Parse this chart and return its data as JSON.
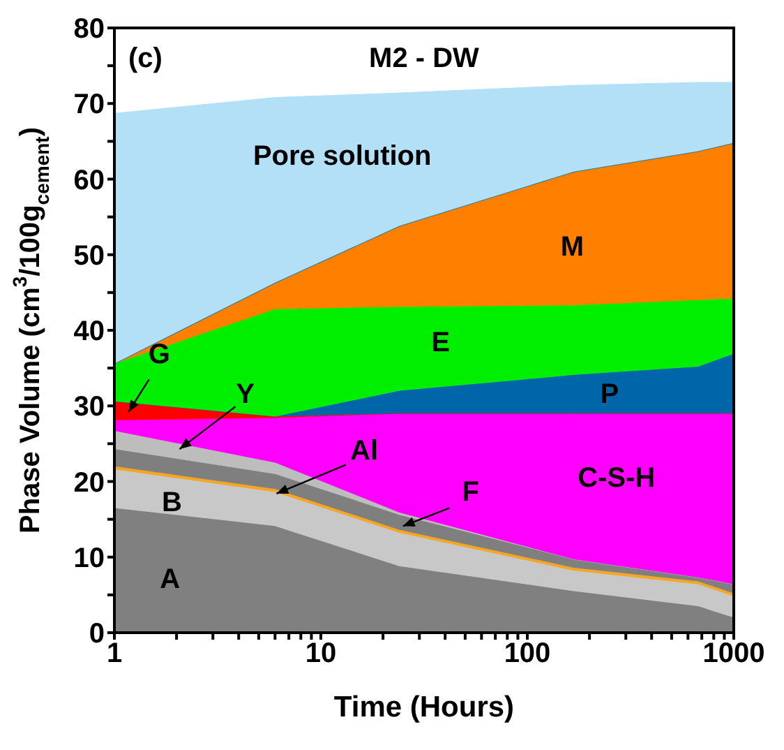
{
  "chart_data": {
    "type": "area",
    "stacked": true,
    "title": "M2 - DW",
    "xlabel": "Time (Hours)",
    "ylabel": "Phase Volume (cm$^{3}$/100g$_{cement}$)",
    "annotations": [
      "(c)"
    ],
    "x": [
      1,
      6,
      24,
      168,
      672,
      1000
    ],
    "series": [
      {
        "name": "A",
        "color": "#808080",
        "values": [
          16.5,
          14.1,
          8.8,
          5.5,
          3.5,
          2.0
        ]
      },
      {
        "name": "B",
        "color": "#c8c8c8",
        "values": [
          5.1,
          4.5,
          4.4,
          2.7,
          2.9,
          2.8
        ]
      },
      {
        "name": "Al",
        "color": "#f5a623",
        "values": [
          0.4,
          0.4,
          0.4,
          0.4,
          0.4,
          0.4
        ]
      },
      {
        "name": "F",
        "color": "#7f7f7f",
        "values": [
          2.3,
          2.0,
          2.0,
          1.1,
          0.5,
          1.2
        ]
      },
      {
        "name": "Y",
        "color": "#bdbdbd",
        "values": [
          2.4,
          1.5,
          0.3,
          0,
          0,
          0
        ]
      },
      {
        "name": "C-S-H",
        "color": "#ff00ff",
        "values": [
          1.4,
          5.9,
          13.1,
          19.3,
          21.7,
          22.6
        ]
      },
      {
        "name": "G",
        "color": "#ff0000",
        "values": [
          2.5,
          0.2,
          0,
          0,
          0,
          0
        ]
      },
      {
        "name": "P",
        "color": "#0066aa",
        "values": [
          0,
          0,
          3.0,
          5.1,
          6.2,
          7.9
        ]
      },
      {
        "name": "E",
        "color": "#00ee00",
        "values": [
          5.0,
          14.2,
          11.1,
          9.2,
          8.8,
          7.3
        ]
      },
      {
        "name": "M",
        "color": "#ff8000",
        "values": [
          0,
          3.5,
          10.7,
          17.7,
          19.7,
          20.6
        ]
      },
      {
        "name": "Pore solution",
        "color": "#b3e0f7",
        "values": [
          33.1,
          24.5,
          17.6,
          11.4,
          9.1,
          8.0
        ]
      }
    ],
    "log": "x",
    "xlim": [
      1,
      1000
    ],
    "xticks": [
      1,
      {
        "value": 2,
        "label": null
      },
      {
        "value": 3,
        "label": null
      },
      {
        "value": 4,
        "label": null
      },
      {
        "value": 5,
        "label": null
      },
      {
        "value": 6,
        "label": null
      },
      {
        "value": 7,
        "label": null
      },
      {
        "value": 8,
        "label": null
      },
      {
        "value": 9,
        "label": null
      },
      10,
      {
        "value": 20,
        "label": null
      },
      {
        "value": 30,
        "label": null
      },
      {
        "value": 40,
        "label": null
      },
      {
        "value": 50,
        "label": null
      },
      {
        "value": 60,
        "label": null
      },
      {
        "value": 70,
        "label": null
      },
      {
        "value": 80,
        "label": null
      },
      {
        "value": 90,
        "label": null
      },
      100,
      {
        "value": 200,
        "label": null
      },
      {
        "value": 300,
        "label": null
      },
      {
        "value": 400,
        "label": null
      },
      {
        "value": 500,
        "label": null
      },
      {
        "value": 600,
        "label": null
      },
      {
        "value": 700,
        "label": null
      },
      {
        "value": 800,
        "label": null
      },
      {
        "value": 900,
        "label": null
      },
      1000
    ],
    "ylim": [
      0,
      80
    ],
    "yticks": [
      0,
      {
        "value": 5,
        "label": null
      },
      10,
      {
        "value": 15,
        "label": null
      },
      20,
      {
        "value": 25,
        "label": null
      },
      30,
      {
        "value": 35,
        "label": null
      },
      40,
      {
        "value": 45,
        "label": null
      },
      50,
      {
        "value": 55,
        "label": null
      },
      60,
      {
        "value": 65,
        "label": null
      },
      70,
      {
        "value": 75,
        "label": null
      },
      80
    ],
    "grid": false,
    "legend": false
  }
}
